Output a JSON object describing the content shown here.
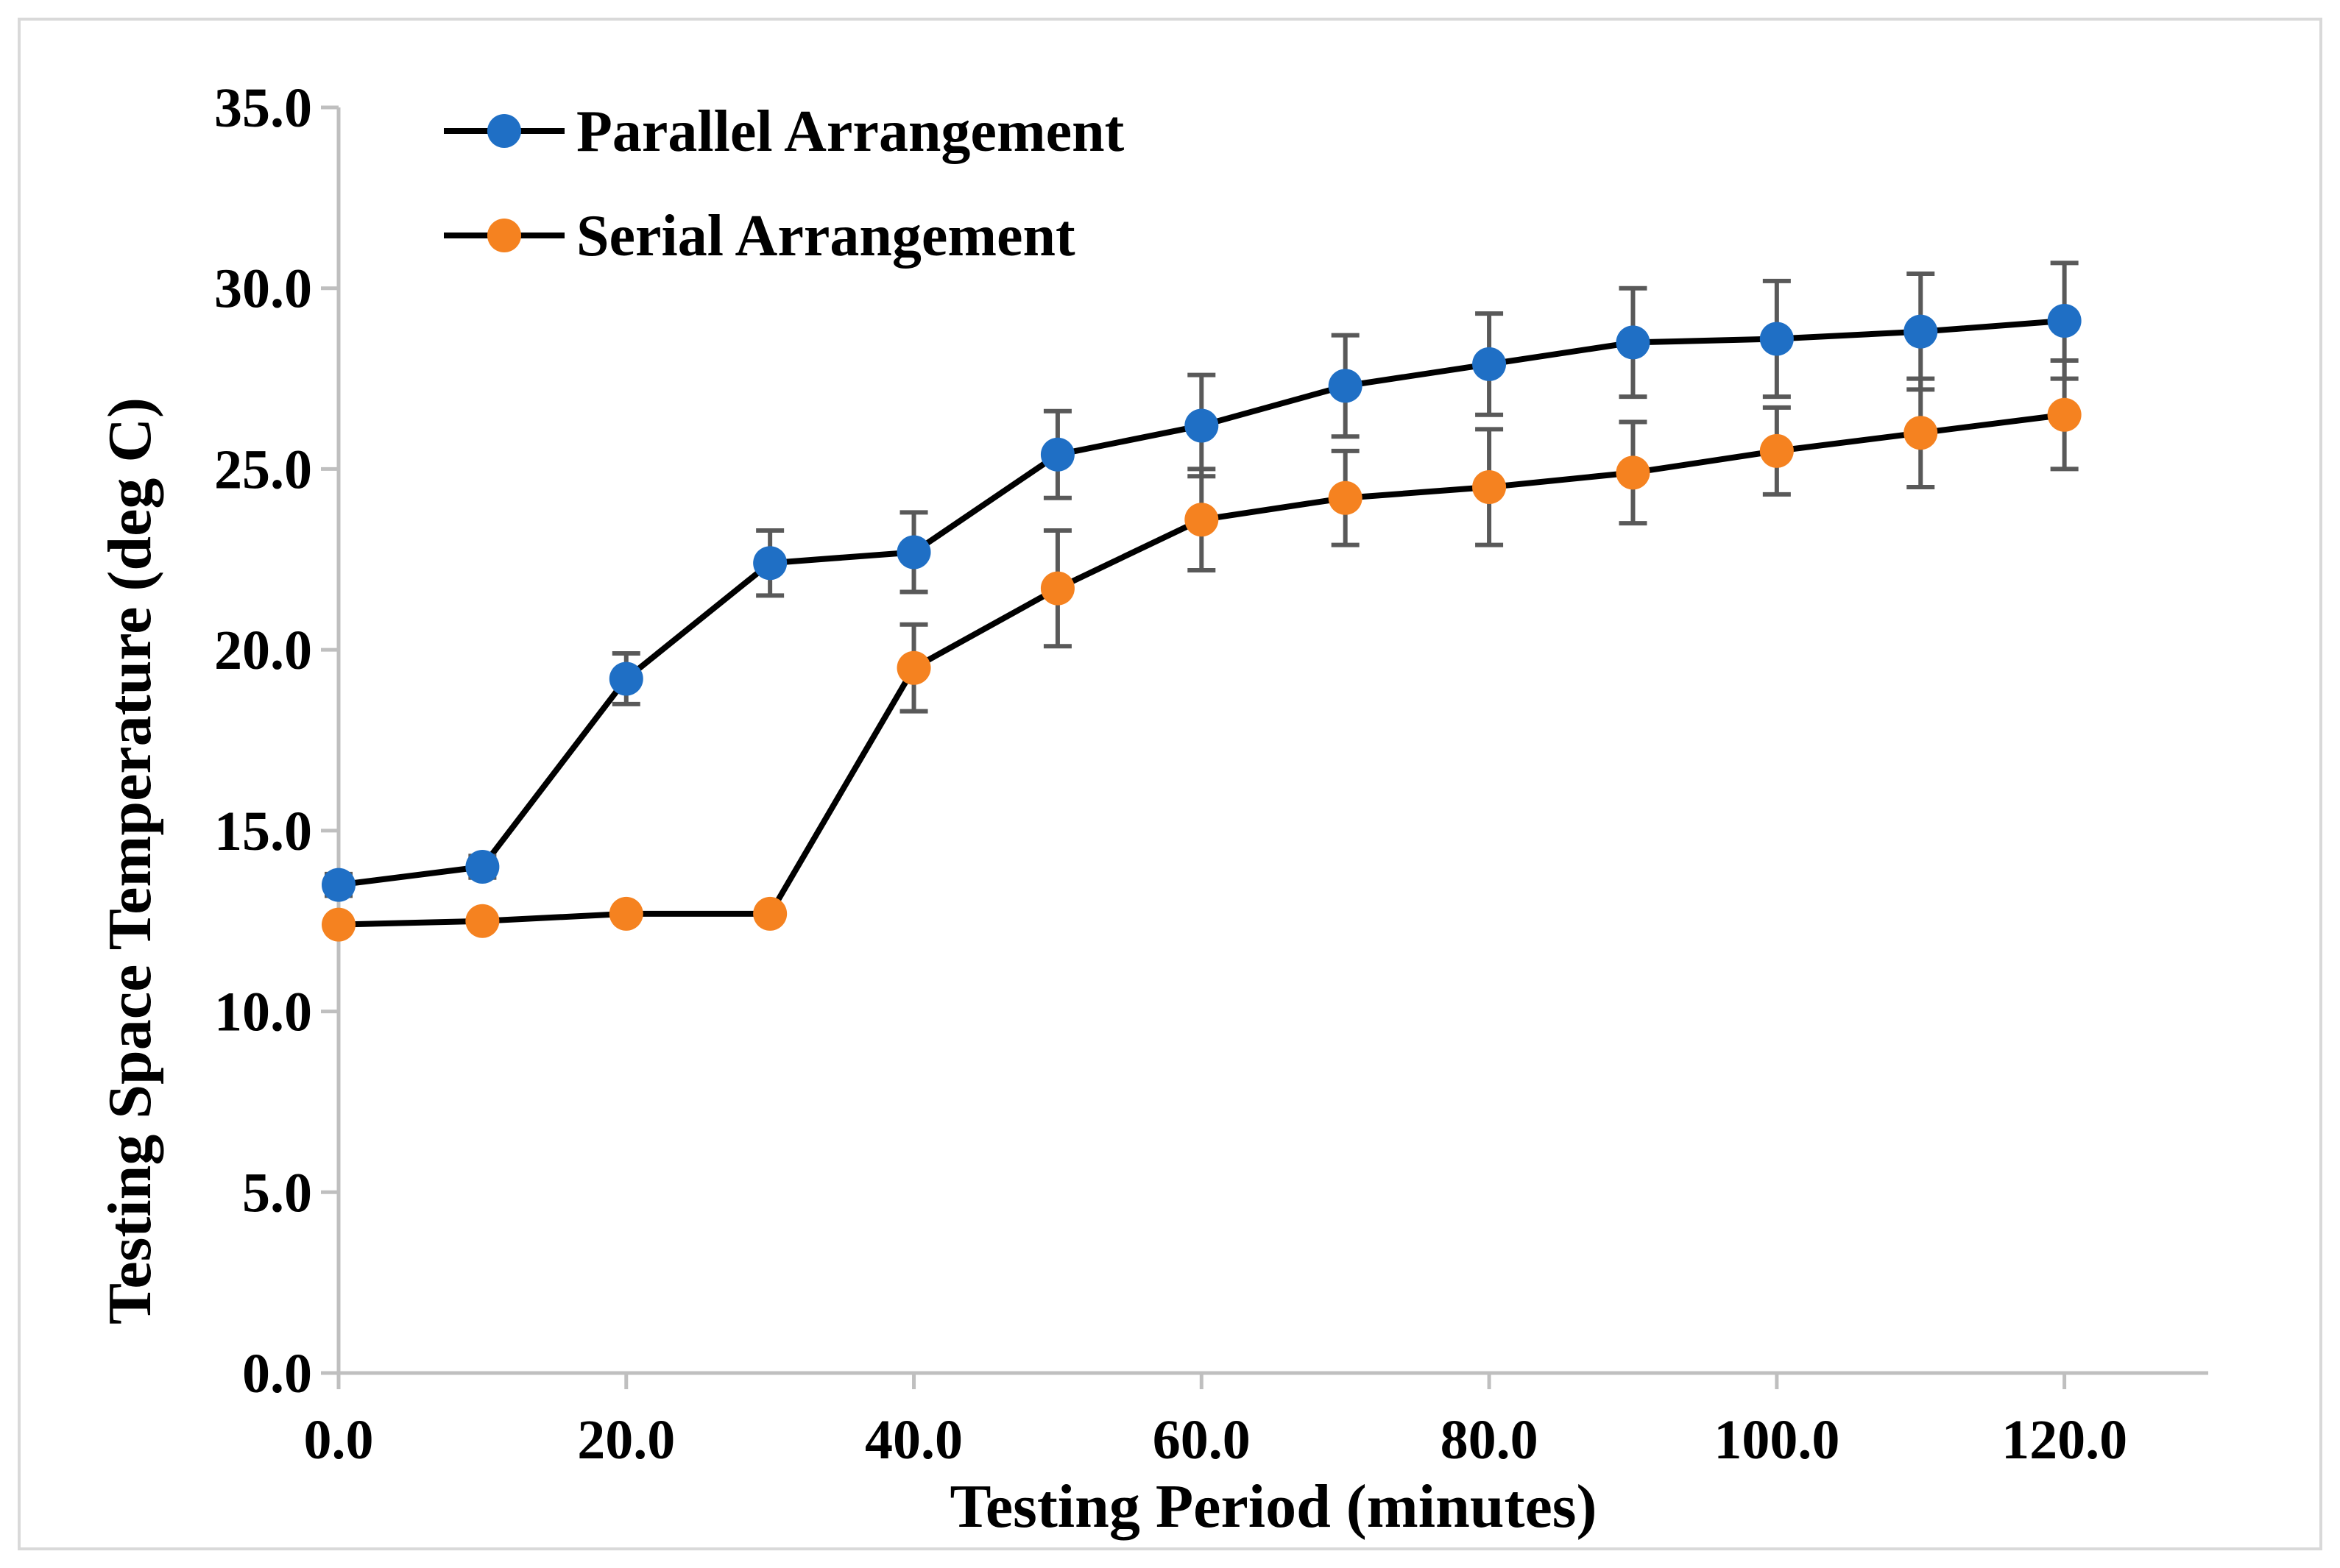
{
  "colors": {
    "parallel": "#1f6fc5",
    "serial": "#f58220",
    "line": "#000000",
    "error_bar": "#595959",
    "axis": "#bfbfbf",
    "frame": "#d9d9d9"
  },
  "chart_data": {
    "type": "line",
    "title": "",
    "xlabel": "Testing Period (minutes)",
    "ylabel": "Testing Space Temperature (deg C)",
    "xlim": [
      0,
      130
    ],
    "ylim": [
      0,
      35
    ],
    "x_ticks": [
      "0.0",
      "20.0",
      "40.0",
      "60.0",
      "80.0",
      "100.0",
      "120.0"
    ],
    "x_tick_values": [
      0,
      20,
      40,
      60,
      80,
      100,
      120
    ],
    "y_ticks": [
      "0.0",
      "5.0",
      "10.0",
      "15.0",
      "20.0",
      "25.0",
      "30.0",
      "35.0"
    ],
    "y_tick_values": [
      0,
      5,
      10,
      15,
      20,
      25,
      30,
      35
    ],
    "grid": false,
    "legend_position": "top-left",
    "x": [
      0,
      10,
      20,
      30,
      40,
      50,
      60,
      70,
      80,
      90,
      100,
      110,
      120
    ],
    "series": [
      {
        "name": "Parallel Arrangement",
        "color": "#1f6fc5",
        "values": [
          13.5,
          14.0,
          19.2,
          22.4,
          22.7,
          25.4,
          26.2,
          27.3,
          27.9,
          28.5,
          28.6,
          28.8,
          29.1
        ],
        "error": [
          0.3,
          0.3,
          0.7,
          0.9,
          1.1,
          1.2,
          1.4,
          1.4,
          1.4,
          1.5,
          1.6,
          1.6,
          1.6
        ]
      },
      {
        "name": "Serial Arrangement",
        "color": "#f58220",
        "values": [
          12.4,
          12.5,
          12.7,
          12.7,
          19.5,
          21.7,
          23.6,
          24.2,
          24.5,
          24.9,
          25.5,
          26.0,
          26.5
        ],
        "error": [
          0.2,
          0.2,
          0.2,
          0.2,
          1.2,
          1.6,
          1.4,
          1.3,
          1.6,
          1.4,
          1.2,
          1.5,
          1.5
        ]
      }
    ]
  }
}
